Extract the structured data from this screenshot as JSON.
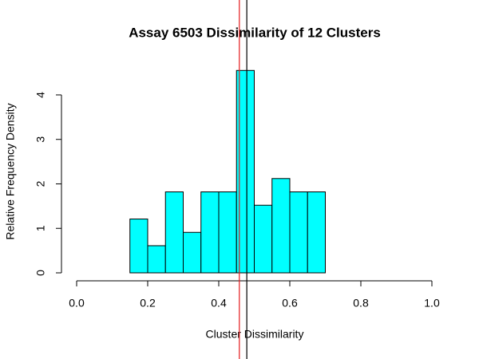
{
  "chart_data": {
    "type": "histogram",
    "title": "Assay 6503 Dissimilarity of 12 Clusters",
    "x_label": "Cluster Dissimilarity",
    "y_label": "Relative Frequency Density",
    "bins": [
      0.15,
      0.2,
      0.25,
      0.3,
      0.35,
      0.4,
      0.45,
      0.5,
      0.55,
      0.6,
      0.65,
      0.7
    ],
    "values": [
      1.21,
      0.61,
      1.82,
      0.91,
      1.82,
      1.82,
      4.55,
      1.52,
      2.12,
      1.82,
      1.82
    ],
    "color": "#00ffff",
    "xlim": [
      0,
      1
    ],
    "xticks": [
      {
        "value": 0,
        "label": "0.0"
      },
      0.2,
      0.4,
      0.6,
      0.8,
      {
        "value": 1,
        "label": "1.0"
      }
    ],
    "ylim": [
      0,
      4.55
    ],
    "yticks": [
      0,
      1,
      2,
      3,
      4
    ],
    "vlines": [
      {
        "value": 0.458,
        "color": "#e41a1c"
      },
      {
        "value": 0.479,
        "color": "#000000"
      }
    ]
  }
}
